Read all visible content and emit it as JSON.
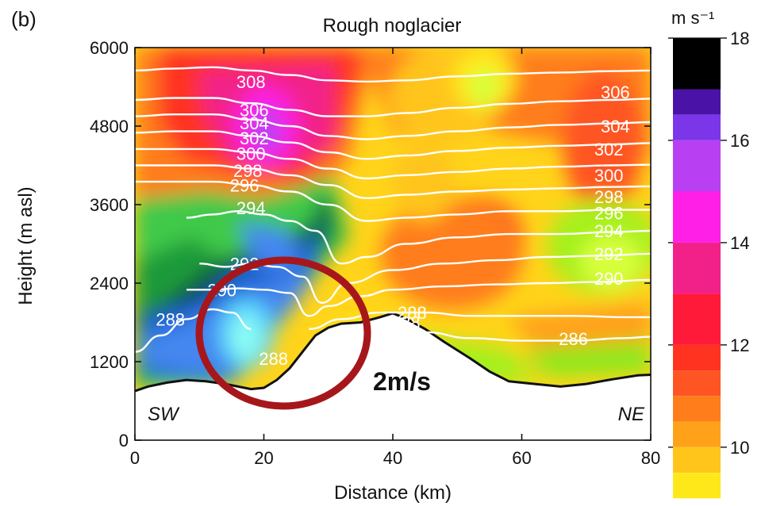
{
  "panel_label": "(b)",
  "chart_data": {
    "type": "heatmap",
    "title": "Rough noglacier",
    "xlabel": "Distance (km)",
    "ylabel": "Height (m asl)",
    "xlim": [
      0,
      80
    ],
    "ylim": [
      0,
      6000
    ],
    "x_ticks": [
      0,
      20,
      40,
      60,
      80
    ],
    "y_ticks": [
      0,
      1200,
      2400,
      3600,
      4800,
      6000
    ],
    "colorbar": {
      "unit": "m s⁻¹",
      "ticks": [
        10,
        12,
        14,
        16,
        18
      ],
      "levels": [
        {
          "from": 17,
          "to": 18,
          "color": "#000000"
        },
        {
          "from": 16.5,
          "to": 17,
          "color": "#4b12a8"
        },
        {
          "from": 16,
          "to": 16.5,
          "color": "#7a36e8"
        },
        {
          "from": 15,
          "to": 16,
          "color": "#b940f2"
        },
        {
          "from": 14,
          "to": 15,
          "color": "#ff1fe6"
        },
        {
          "from": 13,
          "to": 14,
          "color": "#f2218a"
        },
        {
          "from": 12,
          "to": 13,
          "color": "#ff1a3a"
        },
        {
          "from": 11.5,
          "to": 12,
          "color": "#ff3320"
        },
        {
          "from": 11,
          "to": 11.5,
          "color": "#ff5522"
        },
        {
          "from": 10.5,
          "to": 11,
          "color": "#ff7d1a"
        },
        {
          "from": 10,
          "to": 10.5,
          "color": "#ffa21a"
        },
        {
          "from": 9.5,
          "to": 10,
          "color": "#ffc51a"
        },
        {
          "from": 9,
          "to": 9.5,
          "color": "#ffe81a"
        }
      ]
    },
    "side_labels": {
      "left": "SW",
      "right": "NE"
    },
    "terrain": {
      "x": [
        0,
        2,
        5,
        8,
        11,
        14,
        16,
        18,
        20,
        22,
        24,
        26,
        28,
        30,
        32,
        35,
        38,
        40,
        42,
        45,
        48,
        52,
        55,
        58,
        62,
        66,
        70,
        74,
        78,
        80
      ],
      "y": [
        750,
        820,
        880,
        920,
        900,
        860,
        820,
        780,
        800,
        920,
        1100,
        1350,
        1600,
        1720,
        1780,
        1800,
        1880,
        1940,
        1860,
        1700,
        1500,
        1250,
        1050,
        900,
        860,
        820,
        860,
        930,
        990,
        1000
      ]
    },
    "isentropes": [
      {
        "label": "286",
        "label_x": 68,
        "label_y": 1550,
        "x": [
          45,
          52,
          60,
          68,
          76,
          80
        ],
        "y": [
          1650,
          1560,
          1520,
          1520,
          1560,
          1580
        ]
      },
      {
        "label": "288",
        "label_x": 5.5,
        "label_y": 1850,
        "x": [
          0,
          4,
          8,
          12,
          15,
          18
        ],
        "y": [
          1350,
          1600,
          1850,
          2000,
          1950,
          1700
        ]
      },
      {
        "label": "288",
        "label_x": 42,
        "label_y": 1800,
        "x": [
          27,
          32,
          38,
          45,
          52,
          60,
          68,
          76,
          80
        ],
        "y": [
          1700,
          1850,
          1950,
          1950,
          1900,
          1900,
          1900,
          1880,
          1880
        ]
      },
      {
        "label": "288",
        "label_x": 43,
        "label_y": 1950,
        "x": [],
        "y": []
      },
      {
        "label": "288",
        "label_x": 21.5,
        "label_y": 1250,
        "x": [],
        "y": []
      },
      {
        "label": "290",
        "label_x": 13.5,
        "label_y": 2300,
        "x": [
          8,
          12,
          16,
          20,
          24,
          27,
          30,
          35,
          40,
          48,
          56,
          64,
          72,
          80
        ],
        "y": [
          2300,
          2300,
          2320,
          2300,
          2250,
          1900,
          2050,
          2200,
          2300,
          2350,
          2380,
          2400,
          2420,
          2450
        ]
      },
      {
        "label": "290",
        "label_x": 73.5,
        "label_y": 2470,
        "x": [],
        "y": []
      },
      {
        "label": "292",
        "label_x": 17,
        "label_y": 2700,
        "x": [
          10,
          14,
          18,
          22,
          26,
          29,
          33,
          40,
          48,
          56,
          64,
          72,
          80
        ],
        "y": [
          2700,
          2650,
          2700,
          2650,
          2500,
          2100,
          2400,
          2600,
          2700,
          2750,
          2800,
          2820,
          2850
        ]
      },
      {
        "label": "292",
        "label_x": 73.5,
        "label_y": 2850,
        "x": [],
        "y": []
      },
      {
        "label": "294",
        "label_x": 18,
        "label_y": 3550,
        "x": [
          8,
          12,
          16,
          20,
          24,
          28,
          32,
          36,
          42,
          50,
          58,
          66,
          74,
          80
        ],
        "y": [
          3400,
          3450,
          3500,
          3450,
          3350,
          3200,
          2700,
          2800,
          3000,
          3100,
          3150,
          3150,
          3180,
          3200
        ]
      },
      {
        "label": "294",
        "label_x": 73.5,
        "label_y": 3200,
        "x": [],
        "y": []
      },
      {
        "label": "296",
        "label_x": 17,
        "label_y": 3900,
        "x": [
          0,
          6,
          12,
          18,
          24,
          30,
          36,
          42,
          50,
          58,
          66,
          74,
          80
        ],
        "y": [
          3950,
          3950,
          3950,
          3900,
          3800,
          3600,
          3350,
          3400,
          3450,
          3500,
          3500,
          3520,
          3520
        ]
      },
      {
        "label": "296",
        "label_x": 73.5,
        "label_y": 3470,
        "x": [],
        "y": []
      },
      {
        "label": "298",
        "label_x": 17.5,
        "label_y": 4120,
        "x": [
          0,
          6,
          12,
          18,
          24,
          30,
          36,
          42,
          50,
          58,
          66,
          74,
          80
        ],
        "y": [
          4200,
          4200,
          4200,
          4150,
          4050,
          3900,
          3700,
          3750,
          3800,
          3830,
          3850,
          3870,
          3880
        ]
      },
      {
        "label": "298",
        "label_x": 73.5,
        "label_y": 3720,
        "x": [],
        "y": []
      },
      {
        "label": "300",
        "label_x": 18,
        "label_y": 4380,
        "x": [
          0,
          6,
          12,
          18,
          24,
          30,
          36,
          42,
          50,
          58,
          66,
          74,
          80
        ],
        "y": [
          4450,
          4450,
          4450,
          4400,
          4300,
          4150,
          4000,
          4050,
          4100,
          4150,
          4180,
          4200,
          4210
        ]
      },
      {
        "label": "300",
        "label_x": 73.5,
        "label_y": 4050,
        "x": [],
        "y": []
      },
      {
        "label": "302",
        "label_x": 18.5,
        "label_y": 4620,
        "x": [
          0,
          6,
          12,
          18,
          24,
          30,
          36,
          42,
          50,
          58,
          66,
          74,
          80
        ],
        "y": [
          4700,
          4720,
          4720,
          4650,
          4550,
          4400,
          4300,
          4350,
          4420,
          4470,
          4500,
          4520,
          4540
        ]
      },
      {
        "label": "302",
        "label_x": 73.5,
        "label_y": 4450,
        "x": [],
        "y": []
      },
      {
        "label": "304",
        "label_x": 18.5,
        "label_y": 4850,
        "x": [
          0,
          6,
          12,
          18,
          24,
          30,
          36,
          42,
          50,
          58,
          66,
          74,
          80
        ],
        "y": [
          4950,
          4980,
          4980,
          4900,
          4800,
          4650,
          4600,
          4650,
          4720,
          4780,
          4820,
          4840,
          4860
        ]
      },
      {
        "label": "304",
        "label_x": 74.5,
        "label_y": 4800,
        "x": [],
        "y": []
      },
      {
        "label": "306",
        "label_x": 18.5,
        "label_y": 5050,
        "x": [
          0,
          6,
          12,
          18,
          24,
          30,
          36,
          42,
          50,
          58,
          66,
          74,
          80
        ],
        "y": [
          5200,
          5230,
          5230,
          5150,
          5050,
          4950,
          4950,
          5000,
          5080,
          5140,
          5180,
          5200,
          5220
        ]
      },
      {
        "label": "306",
        "label_x": 74.5,
        "label_y": 5320,
        "x": [],
        "y": []
      },
      {
        "label": "308",
        "label_x": 18,
        "label_y": 5480,
        "x": [
          0,
          6,
          12,
          18,
          24,
          30,
          36,
          42,
          50,
          58,
          66,
          74,
          80
        ],
        "y": [
          5650,
          5680,
          5700,
          5650,
          5580,
          5500,
          5480,
          5500,
          5560,
          5600,
          5620,
          5640,
          5650
        ]
      }
    ],
    "annotation": {
      "text": "2m/s",
      "center_x": 24.5,
      "center_y": 1550
    }
  }
}
